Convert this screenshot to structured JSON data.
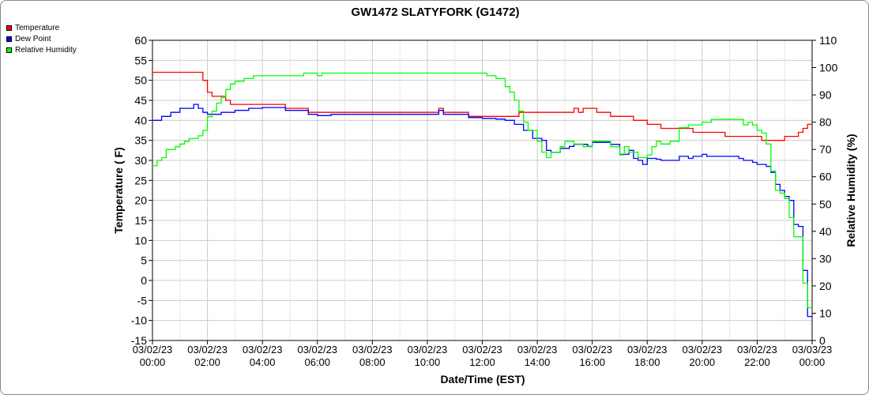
{
  "chart_data": {
    "type": "line",
    "title": "GW1472 SLATYFORK (G1472)",
    "xlabel": "Date/Time (EST)",
    "ylabel_left": "Temperature ( F)",
    "ylabel_right": "Relative Humidity (%)",
    "x_ticks": [
      {
        "date": "03/02/23",
        "time": "00:00"
      },
      {
        "date": "03/02/23",
        "time": "02:00"
      },
      {
        "date": "03/02/23",
        "time": "04:00"
      },
      {
        "date": "03/02/23",
        "time": "06:00"
      },
      {
        "date": "03/02/23",
        "time": "08:00"
      },
      {
        "date": "03/02/23",
        "time": "10:00"
      },
      {
        "date": "03/02/23",
        "time": "12:00"
      },
      {
        "date": "03/02/23",
        "time": "14:00"
      },
      {
        "date": "03/02/23",
        "time": "16:00"
      },
      {
        "date": "03/02/23",
        "time": "18:00"
      },
      {
        "date": "03/02/23",
        "time": "20:00"
      },
      {
        "date": "03/02/23",
        "time": "22:00"
      },
      {
        "date": "03/03/23",
        "time": "00:00"
      }
    ],
    "xlim": [
      "03/02/23 00:00",
      "03/03/23 00:00"
    ],
    "ylim_left": [
      -15,
      60
    ],
    "yticks_left": [
      -15,
      -10,
      -5,
      0,
      5,
      10,
      15,
      20,
      25,
      30,
      35,
      40,
      45,
      50,
      55,
      60
    ],
    "ylim_right": [
      0,
      110
    ],
    "yticks_right": [
      0,
      10,
      20,
      30,
      40,
      50,
      60,
      70,
      80,
      90,
      100,
      110
    ],
    "grid": true,
    "legend_position": "top-left",
    "series": [
      {
        "name": "Temperature",
        "color": "#ff0000",
        "axis": "left",
        "points": [
          [
            "00:00",
            52
          ],
          [
            "00:40",
            52
          ],
          [
            "01:20",
            52
          ],
          [
            "01:40",
            52
          ],
          [
            "01:50",
            50
          ],
          [
            "02:00",
            47
          ],
          [
            "02:10",
            46
          ],
          [
            "02:30",
            46
          ],
          [
            "02:40",
            45
          ],
          [
            "02:50",
            44
          ],
          [
            "03:30",
            44
          ],
          [
            "04:00",
            44
          ],
          [
            "04:30",
            44
          ],
          [
            "04:50",
            43
          ],
          [
            "05:30",
            43
          ],
          [
            "05:40",
            42
          ],
          [
            "06:30",
            42
          ],
          [
            "08:00",
            42
          ],
          [
            "10:00",
            42
          ],
          [
            "10:20",
            42
          ],
          [
            "10:25",
            43
          ],
          [
            "10:35",
            42
          ],
          [
            "11:00",
            42
          ],
          [
            "11:20",
            42
          ],
          [
            "11:30",
            41
          ],
          [
            "12:30",
            41
          ],
          [
            "13:00",
            41
          ],
          [
            "13:20",
            42
          ],
          [
            "14:00",
            42
          ],
          [
            "15:00",
            42
          ],
          [
            "15:20",
            43
          ],
          [
            "15:30",
            42
          ],
          [
            "15:40",
            43
          ],
          [
            "16:10",
            42
          ],
          [
            "16:30",
            42
          ],
          [
            "16:40",
            41
          ],
          [
            "17:20",
            41
          ],
          [
            "17:30",
            40
          ],
          [
            "17:50",
            40
          ],
          [
            "18:00",
            39
          ],
          [
            "18:20",
            39
          ],
          [
            "18:30",
            38
          ],
          [
            "19:00",
            38
          ],
          [
            "19:20",
            38
          ],
          [
            "19:40",
            37
          ],
          [
            "20:00",
            37
          ],
          [
            "20:30",
            37
          ],
          [
            "20:50",
            36
          ],
          [
            "21:30",
            36
          ],
          [
            "22:00",
            36
          ],
          [
            "22:10",
            35
          ],
          [
            "22:50",
            35
          ],
          [
            "23:00",
            36
          ],
          [
            "23:20",
            36
          ],
          [
            "23:30",
            37
          ],
          [
            "23:40",
            38
          ],
          [
            "23:50",
            39
          ],
          [
            "24:00",
            39
          ]
        ]
      },
      {
        "name": "Dew Point",
        "color": "#0000ff",
        "axis": "left",
        "points": [
          [
            "00:00",
            40
          ],
          [
            "00:20",
            41
          ],
          [
            "00:40",
            42
          ],
          [
            "01:00",
            43
          ],
          [
            "01:20",
            43
          ],
          [
            "01:30",
            44
          ],
          [
            "01:40",
            43
          ],
          [
            "01:50",
            42
          ],
          [
            "02:00",
            41.5
          ],
          [
            "02:20",
            41.5
          ],
          [
            "02:30",
            42
          ],
          [
            "03:00",
            42.5
          ],
          [
            "03:30",
            43
          ],
          [
            "04:00",
            43.2
          ],
          [
            "04:30",
            43.2
          ],
          [
            "04:50",
            42.5
          ],
          [
            "05:20",
            42.5
          ],
          [
            "05:40",
            41.5
          ],
          [
            "06:00",
            41.2
          ],
          [
            "06:30",
            41.5
          ],
          [
            "08:00",
            41.5
          ],
          [
            "10:00",
            41.5
          ],
          [
            "10:20",
            41.5
          ],
          [
            "10:25",
            42.5
          ],
          [
            "10:35",
            41.5
          ],
          [
            "11:00",
            41.5
          ],
          [
            "11:20",
            41.5
          ],
          [
            "11:30",
            40.7
          ],
          [
            "12:00",
            40.5
          ],
          [
            "12:30",
            40.3
          ],
          [
            "12:50",
            40
          ],
          [
            "13:10",
            39
          ],
          [
            "13:30",
            37.5
          ],
          [
            "13:50",
            35.5
          ],
          [
            "14:10",
            35
          ],
          [
            "14:20",
            32.5
          ],
          [
            "14:30",
            32
          ],
          [
            "14:40",
            32
          ],
          [
            "14:50",
            33
          ],
          [
            "15:10",
            33.5
          ],
          [
            "15:20",
            34
          ],
          [
            "15:30",
            34
          ],
          [
            "15:50",
            33.5
          ],
          [
            "16:00",
            34.5
          ],
          [
            "16:30",
            34.5
          ],
          [
            "16:40",
            34
          ],
          [
            "16:50",
            34
          ],
          [
            "17:00",
            31.5
          ],
          [
            "17:10",
            31.5
          ],
          [
            "17:20",
            32.5
          ],
          [
            "17:30",
            30.5
          ],
          [
            "17:40",
            30
          ],
          [
            "17:50",
            29
          ],
          [
            "18:00",
            30.5
          ],
          [
            "18:20",
            30.3
          ],
          [
            "18:30",
            30
          ],
          [
            "19:00",
            30
          ],
          [
            "19:10",
            31
          ],
          [
            "19:20",
            31
          ],
          [
            "19:30",
            30.5
          ],
          [
            "19:40",
            31
          ],
          [
            "20:00",
            31.5
          ],
          [
            "20:10",
            31
          ],
          [
            "20:30",
            31
          ],
          [
            "21:00",
            31
          ],
          [
            "21:20",
            30.5
          ],
          [
            "21:30",
            30
          ],
          [
            "21:50",
            29.5
          ],
          [
            "22:00",
            29
          ],
          [
            "22:20",
            28.5
          ],
          [
            "22:30",
            27
          ],
          [
            "22:40",
            24
          ],
          [
            "22:50",
            22.5
          ],
          [
            "23:00",
            21
          ],
          [
            "23:10",
            20
          ],
          [
            "23:20",
            14
          ],
          [
            "23:30",
            13.5
          ],
          [
            "23:40",
            2.5
          ],
          [
            "23:50",
            -9
          ],
          [
            "24:00",
            -9
          ]
        ]
      },
      {
        "name": "Relative Humidity",
        "color": "#00ff00",
        "axis": "right",
        "points": [
          [
            "00:00",
            64
          ],
          [
            "00:10",
            66
          ],
          [
            "00:20",
            67
          ],
          [
            "00:30",
            70
          ],
          [
            "00:50",
            71
          ],
          [
            "01:00",
            72
          ],
          [
            "01:10",
            73
          ],
          [
            "01:20",
            74
          ],
          [
            "01:40",
            75
          ],
          [
            "01:50",
            77
          ],
          [
            "02:00",
            82
          ],
          [
            "02:10",
            84
          ],
          [
            "02:20",
            87
          ],
          [
            "02:30",
            89
          ],
          [
            "02:40",
            92
          ],
          [
            "02:50",
            94
          ],
          [
            "03:00",
            95
          ],
          [
            "03:20",
            96
          ],
          [
            "03:40",
            97
          ],
          [
            "04:00",
            97
          ],
          [
            "05:20",
            97
          ],
          [
            "05:30",
            98
          ],
          [
            "05:50",
            98
          ],
          [
            "06:00",
            97
          ],
          [
            "06:10",
            98
          ],
          [
            "08:00",
            98
          ],
          [
            "10:00",
            98
          ],
          [
            "11:40",
            98
          ],
          [
            "12:00",
            98
          ],
          [
            "12:10",
            97
          ],
          [
            "12:30",
            96
          ],
          [
            "12:50",
            93
          ],
          [
            "13:00",
            91
          ],
          [
            "13:10",
            88
          ],
          [
            "13:20",
            84
          ],
          [
            "13:30",
            80
          ],
          [
            "13:40",
            77
          ],
          [
            "13:50",
            77
          ],
          [
            "14:00",
            73
          ],
          [
            "14:10",
            69
          ],
          [
            "14:20",
            67
          ],
          [
            "14:30",
            69
          ],
          [
            "14:50",
            71
          ],
          [
            "15:00",
            73
          ],
          [
            "15:20",
            72
          ],
          [
            "15:40",
            71
          ],
          [
            "16:00",
            73
          ],
          [
            "16:30",
            73
          ],
          [
            "16:40",
            71
          ],
          [
            "17:00",
            68
          ],
          [
            "17:10",
            71
          ],
          [
            "17:20",
            69
          ],
          [
            "17:40",
            67
          ],
          [
            "18:00",
            68
          ],
          [
            "18:10",
            71
          ],
          [
            "18:20",
            73
          ],
          [
            "18:30",
            72
          ],
          [
            "18:50",
            73
          ],
          [
            "19:10",
            78
          ],
          [
            "19:20",
            78
          ],
          [
            "19:30",
            79
          ],
          [
            "20:00",
            80
          ],
          [
            "20:20",
            81
          ],
          [
            "20:50",
            81
          ],
          [
            "21:20",
            81
          ],
          [
            "21:30",
            79
          ],
          [
            "21:40",
            80
          ],
          [
            "21:50",
            79
          ],
          [
            "22:00",
            77
          ],
          [
            "22:10",
            76
          ],
          [
            "22:20",
            72
          ],
          [
            "22:30",
            62
          ],
          [
            "22:40",
            55
          ],
          [
            "22:50",
            54
          ],
          [
            "23:00",
            52
          ],
          [
            "23:10",
            45
          ],
          [
            "23:20",
            38
          ],
          [
            "23:30",
            38
          ],
          [
            "23:40",
            21
          ],
          [
            "23:50",
            12
          ],
          [
            "24:00",
            12
          ]
        ]
      }
    ]
  }
}
